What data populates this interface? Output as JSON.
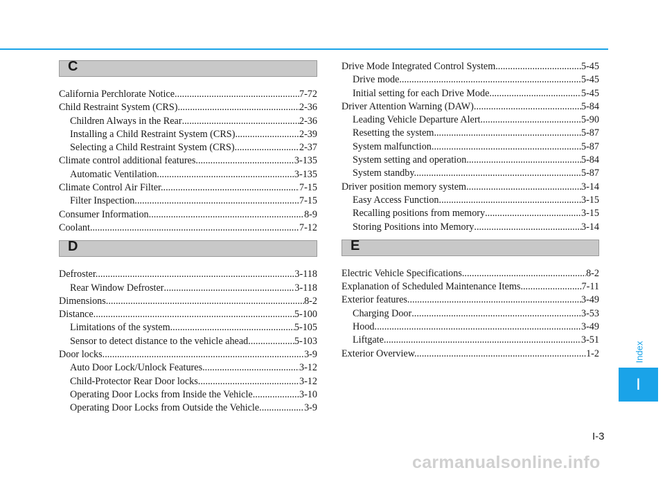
{
  "sections": {
    "C": {
      "letter": "C",
      "entries": [
        {
          "label": "California Perchlorate Notice",
          "page": "7-72"
        },
        {
          "label": "Child Restraint System (CRS)",
          "page": "2-36"
        },
        {
          "label": "Children Always in the Rear",
          "page": "2-36"
        },
        {
          "label": "Installing a Child Restraint System (CRS)",
          "page": "2-39"
        },
        {
          "label": "Selecting a Child Restraint System (CRS).",
          "page": "2-37"
        },
        {
          "label": "Climate control additional features.",
          "page": "3-135"
        },
        {
          "label": "Automatic Ventilation.",
          "page": "3-135"
        },
        {
          "label": "Climate Control Air Filter.",
          "page": "7-15"
        },
        {
          "label": "Filter Inspection.",
          "page": "7-15"
        },
        {
          "label": "Consumer Information",
          "page": "8-9"
        },
        {
          "label": "Coolant",
          "page": "7-12"
        }
      ]
    },
    "D": {
      "letter": "D",
      "entries": [
        {
          "label": "Defroster.",
          "page": "3-118"
        },
        {
          "label": "Rear Window Defroster",
          "page": "3-118"
        },
        {
          "label": "Dimensions",
          "page": "8-2"
        },
        {
          "label": "Distance.",
          "page": "5-100"
        },
        {
          "label": "Limitations of the system",
          "page": "5-105"
        },
        {
          "label": "Sensor to detect distance to the vehicle ahead",
          "page": "5-103"
        },
        {
          "label": "Door locks",
          "page": "3-9"
        },
        {
          "label": "Auto Door Lock/Unlock Features",
          "page": "3-12"
        },
        {
          "label": "Child-Protector Rear Door locks.",
          "page": "3-12"
        },
        {
          "label": "Operating Door Locks from Inside the Vehicle",
          "page": "3-10"
        },
        {
          "label": "Operating Door Locks from Outside the Vehicle",
          "page": "3-9"
        },
        {
          "label": "Drive Mode Integrated Control System",
          "page": "5-45"
        },
        {
          "label": "Drive mode",
          "page": "5-45"
        },
        {
          "label": "Initial setting for each Drive Mode",
          "page": "5-45"
        },
        {
          "label": "Driver Attention Warning (DAW)",
          "page": "5-84"
        },
        {
          "label": "Leading Vehicle Departure Alert",
          "page": "5-90"
        },
        {
          "label": "Resetting the system",
          "page": "5-87"
        },
        {
          "label": "System malfunction",
          "page": "5-87"
        },
        {
          "label": "System setting and operation",
          "page": "5-84"
        },
        {
          "label": "System standby.",
          "page": "5-87"
        },
        {
          "label": "Driver position memory system",
          "page": "3-14"
        },
        {
          "label": "Easy Access Function.",
          "page": "3-15"
        },
        {
          "label": "Recalling positions from memory",
          "page": "3-15"
        },
        {
          "label": "Storing Positions into Memory",
          "page": "3-14"
        }
      ]
    },
    "E": {
      "letter": "E",
      "entries": [
        {
          "label": "Electric Vehicle Specifications",
          "page": "8-2"
        },
        {
          "label": "Explanation of Scheduled Maintenance Items",
          "page": "7-11"
        },
        {
          "label": "Exterior features.",
          "page": "3-49"
        },
        {
          "label": "Charging Door",
          "page": "3-53"
        },
        {
          "label": "Hood",
          "page": "3-49"
        },
        {
          "label": "Liftgate",
          "page": "3-51"
        },
        {
          "label": "Exterior Overview.",
          "page": "1-2"
        }
      ]
    }
  },
  "side_tab": {
    "label": "Index",
    "letter": "I"
  },
  "page_number": "I-3",
  "watermark": "carmanualsonline.info",
  "colors": {
    "accent": "#1aa3e8",
    "header_fill": "#c8c8c8"
  }
}
